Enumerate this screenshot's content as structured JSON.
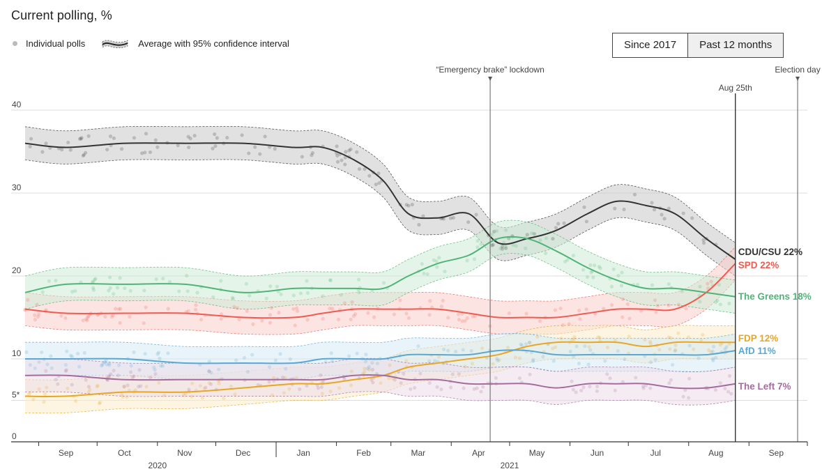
{
  "title": "Current polling, %",
  "legend": {
    "individual": "Individual polls",
    "average": "Average with 95% confidence interval"
  },
  "toggle": {
    "since2017": "Since 2017",
    "past12": "Past 12 months",
    "active": "past12"
  },
  "annotations": {
    "lockdown": "“Emergency brake” lockdown",
    "aug25": "Aug 25th",
    "election": "Election day"
  },
  "chart_data": {
    "type": "line",
    "ylim": [
      0,
      40
    ],
    "yticks": [
      0,
      5,
      10,
      20,
      30,
      40
    ],
    "ytick_labels": [
      "0",
      "5*",
      "10",
      "20",
      "30",
      "40"
    ],
    "x_tick_labels": [
      "Sep",
      "Oct",
      "Nov",
      "Dec",
      "Jan",
      "Feb",
      "Mar",
      "Apr",
      "May",
      "Jun",
      "Jul",
      "Aug",
      "Sep"
    ],
    "x_tick_dates": [
      "2020-09-15",
      "2020-10-15",
      "2020-11-15",
      "2020-12-15",
      "2021-01-15",
      "2021-02-15",
      "2021-03-15",
      "2021-04-15",
      "2021-05-15",
      "2021-06-15",
      "2021-07-15",
      "2021-08-15",
      "2021-09-15"
    ],
    "year_labels": [
      {
        "year": "2020",
        "date": "2020-11-01"
      },
      {
        "year": "2021",
        "date": "2021-05-01"
      }
    ],
    "x_start": "2020-08-25",
    "x_end": "2021-10-01",
    "markers": [
      {
        "name": "lockdown",
        "date": "2021-04-21"
      },
      {
        "name": "aug25",
        "date": "2021-08-25"
      },
      {
        "name": "election",
        "date": "2021-09-26"
      }
    ],
    "series": [
      {
        "name": "CDU/CSU",
        "label": "CDU/CSU 22%",
        "color": "#333333",
        "band": "#c9c9c9",
        "x": [
          "2020-08-25",
          "2020-09-15",
          "2020-10-15",
          "2020-11-15",
          "2020-12-15",
          "2021-01-10",
          "2021-01-25",
          "2021-02-10",
          "2021-02-25",
          "2021-03-10",
          "2021-03-25",
          "2021-04-10",
          "2021-04-25",
          "2021-05-10",
          "2021-05-25",
          "2021-06-10",
          "2021-06-25",
          "2021-07-10",
          "2021-07-25",
          "2021-08-10",
          "2021-08-25"
        ],
        "values": [
          36,
          35.5,
          36,
          36,
          36,
          35.5,
          35.5,
          34,
          31.5,
          27.5,
          27,
          27.5,
          24,
          24.5,
          25.5,
          27.5,
          29,
          28.5,
          27.5,
          24.5,
          22
        ]
      },
      {
        "name": "SPD",
        "label": "SPD 22%",
        "color": "#f05a50",
        "band": "#f7cdca",
        "x": [
          "2020-08-25",
          "2020-09-15",
          "2020-10-15",
          "2020-11-15",
          "2020-12-15",
          "2021-01-10",
          "2021-01-25",
          "2021-02-10",
          "2021-02-25",
          "2021-03-10",
          "2021-03-25",
          "2021-04-10",
          "2021-04-25",
          "2021-05-10",
          "2021-05-25",
          "2021-06-10",
          "2021-06-25",
          "2021-07-10",
          "2021-07-25",
          "2021-08-10",
          "2021-08-25"
        ],
        "values": [
          16,
          15.5,
          15.5,
          15.5,
          15,
          15,
          15.5,
          16,
          16,
          16,
          16,
          15.5,
          15,
          15,
          15,
          15.5,
          16,
          16,
          16,
          18,
          21.5
        ]
      },
      {
        "name": "The Greens",
        "label": "The Greens 18%",
        "color": "#4fb478",
        "band": "#cdebd6",
        "x": [
          "2020-08-25",
          "2020-09-15",
          "2020-10-15",
          "2020-11-15",
          "2020-12-15",
          "2021-01-10",
          "2021-01-25",
          "2021-02-10",
          "2021-02-25",
          "2021-03-10",
          "2021-03-25",
          "2021-04-10",
          "2021-04-25",
          "2021-05-10",
          "2021-05-25",
          "2021-06-10",
          "2021-06-25",
          "2021-07-10",
          "2021-07-25",
          "2021-08-10",
          "2021-08-25"
        ],
        "values": [
          18,
          19,
          19,
          19,
          18,
          18.5,
          18.5,
          18.5,
          18.5,
          20,
          21.5,
          22.5,
          24.5,
          24.5,
          23,
          21,
          19.5,
          18.5,
          18.5,
          18,
          17.5
        ]
      },
      {
        "name": "FDP",
        "label": "FDP 12%",
        "color": "#e8a623",
        "band": "#fbeccb",
        "x": [
          "2020-08-25",
          "2020-09-15",
          "2020-10-15",
          "2020-11-15",
          "2020-12-15",
          "2021-01-10",
          "2021-01-25",
          "2021-02-10",
          "2021-02-25",
          "2021-03-10",
          "2021-03-25",
          "2021-04-10",
          "2021-04-25",
          "2021-05-10",
          "2021-05-25",
          "2021-06-10",
          "2021-06-25",
          "2021-07-10",
          "2021-07-25",
          "2021-08-10",
          "2021-08-25"
        ],
        "values": [
          5.5,
          5.5,
          6,
          6,
          6.5,
          7,
          7,
          7.5,
          8,
          9,
          9.5,
          10,
          10.5,
          11.5,
          12,
          12,
          12,
          11.5,
          12,
          12,
          12
        ]
      },
      {
        "name": "AfD",
        "label": "AfD 11%",
        "color": "#5aa8d2",
        "band": "#d6eaf6",
        "x": [
          "2020-08-25",
          "2020-09-15",
          "2020-10-15",
          "2020-11-15",
          "2020-12-15",
          "2021-01-10",
          "2021-01-25",
          "2021-02-10",
          "2021-02-25",
          "2021-03-10",
          "2021-03-25",
          "2021-04-10",
          "2021-04-25",
          "2021-05-10",
          "2021-05-25",
          "2021-06-10",
          "2021-06-25",
          "2021-07-10",
          "2021-07-25",
          "2021-08-10",
          "2021-08-25"
        ],
        "values": [
          10,
          10,
          10,
          9.5,
          9.5,
          9.5,
          10,
          10,
          10,
          10.5,
          10.5,
          10.5,
          11,
          11,
          10.5,
          10.5,
          10.5,
          10.5,
          10.5,
          10.5,
          11
        ]
      },
      {
        "name": "The Left",
        "label": "The Left 7%",
        "color": "#a36c9d",
        "band": "#ecdde9",
        "x": [
          "2020-08-25",
          "2020-09-15",
          "2020-10-15",
          "2020-11-15",
          "2020-12-15",
          "2021-01-10",
          "2021-01-25",
          "2021-02-10",
          "2021-02-25",
          "2021-03-10",
          "2021-03-25",
          "2021-04-10",
          "2021-04-25",
          "2021-05-10",
          "2021-05-25",
          "2021-06-10",
          "2021-06-25",
          "2021-07-10",
          "2021-07-25",
          "2021-08-10",
          "2021-08-25"
        ],
        "values": [
          8,
          8,
          7.5,
          7.5,
          7.5,
          7.5,
          7.5,
          8,
          8,
          7.5,
          7.5,
          7,
          7,
          7,
          6.5,
          7,
          7,
          7,
          6.5,
          6.5,
          7
        ]
      }
    ],
    "band_halfwidth": 2,
    "grid": true
  }
}
